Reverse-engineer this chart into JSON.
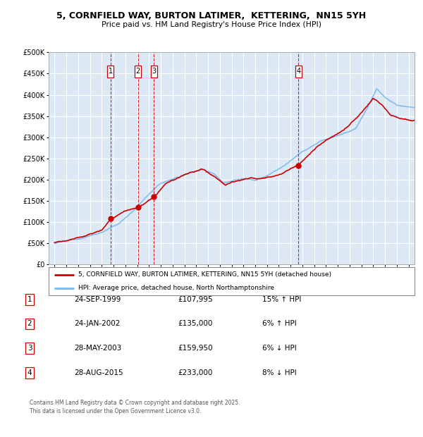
{
  "title_line1": "5, CORNFIELD WAY, BURTON LATIMER,  KETTERING,  NN15 5YH",
  "title_line2": "Price paid vs. HM Land Registry's House Price Index (HPI)",
  "background_color": "#dce9f5",
  "plot_bg_color": "#dce9f5",
  "grid_color": "#ffffff",
  "hpi_color": "#7ab8e8",
  "price_color": "#cc0000",
  "transactions": [
    {
      "id": 1,
      "date_str": "24-SEP-1999",
      "year": 1999.73,
      "price": 107995,
      "pct": "15%",
      "dir": "↑"
    },
    {
      "id": 2,
      "date_str": "24-JAN-2002",
      "year": 2002.07,
      "price": 135000,
      "pct": "6%",
      "dir": "↑"
    },
    {
      "id": 3,
      "date_str": "28-MAY-2003",
      "year": 2003.41,
      "price": 159950,
      "pct": "6%",
      "dir": "↓"
    },
    {
      "id": 4,
      "date_str": "28-AUG-2015",
      "year": 2015.66,
      "price": 233000,
      "pct": "8%",
      "dir": "↓"
    }
  ],
  "legend_label1": "5, CORNFIELD WAY, BURTON LATIMER, KETTERING, NN15 5YH (detached house)",
  "legend_label2": "HPI: Average price, detached house, North Northamptonshire",
  "footer_line1": "Contains HM Land Registry data © Crown copyright and database right 2025.",
  "footer_line2": "This data is licensed under the Open Government Licence v3.0.",
  "ylim": [
    0,
    500000
  ],
  "yticks": [
    0,
    50000,
    100000,
    150000,
    200000,
    250000,
    300000,
    350000,
    400000,
    450000,
    500000
  ],
  "xmin": 1994.5,
  "xmax": 2025.5
}
